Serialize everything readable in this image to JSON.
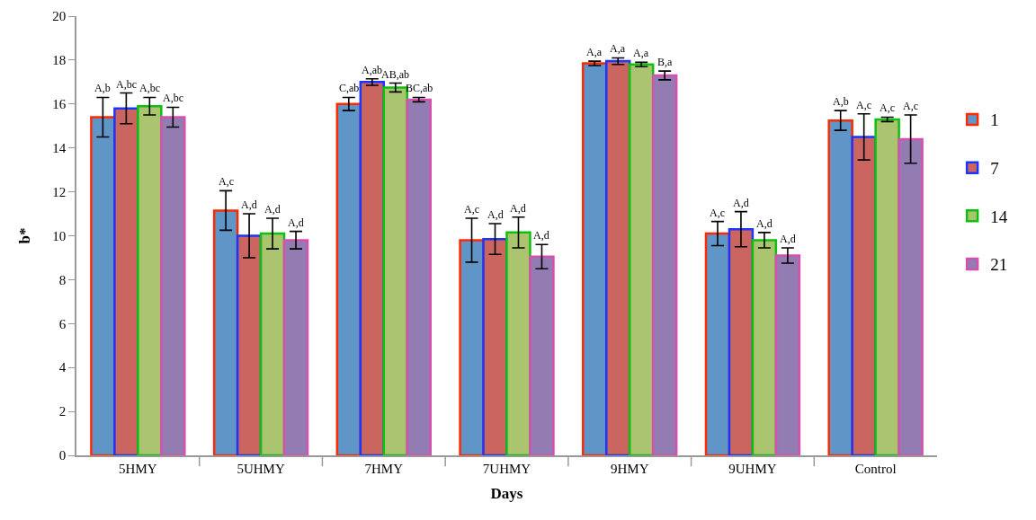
{
  "chart_data": {
    "type": "bar",
    "xlabel": "Days",
    "ylabel": "b*",
    "categories": [
      "5HMY",
      "5UHMY",
      "7HMY",
      "7UHMY",
      "9HMY",
      "9UHMY",
      "Control"
    ],
    "series": [
      {
        "name": "1",
        "color": "#6095c8",
        "values": [
          15.4,
          11.15,
          16.0,
          9.8,
          17.85,
          10.1,
          15.25
        ],
        "errors": [
          0.9,
          0.9,
          0.3,
          1.0,
          0.1,
          0.55,
          0.45
        ],
        "value_labels": [
          "A,b",
          "A,c",
          "C,ab",
          "A,c",
          "A,a",
          "A,c",
          "A,b"
        ]
      },
      {
        "name": "7",
        "color": "#cb655f",
        "values": [
          15.8,
          10.0,
          17.0,
          9.85,
          17.95,
          10.3,
          14.5
        ],
        "errors": [
          0.7,
          1.0,
          0.15,
          0.7,
          0.15,
          0.8,
          1.05
        ],
        "value_labels": [
          "A,bc",
          "A,d",
          "A,ab",
          "A,d",
          "A,a",
          "A,d",
          "A,c"
        ]
      },
      {
        "name": "14",
        "color": "#abc46f",
        "values": [
          15.9,
          10.1,
          16.75,
          10.15,
          17.8,
          9.8,
          15.3
        ],
        "errors": [
          0.4,
          0.7,
          0.2,
          0.7,
          0.1,
          0.35,
          0.1
        ],
        "value_labels": [
          "A,bc",
          "A,d",
          "AB,ab",
          "A,d",
          "A,a",
          "A,d",
          "A,c"
        ]
      },
      {
        "name": "21",
        "color": "#937cb2",
        "values": [
          15.4,
          9.8,
          16.2,
          9.05,
          17.3,
          9.1,
          14.4
        ],
        "errors": [
          0.45,
          0.4,
          0.1,
          0.55,
          0.2,
          0.35,
          1.1
        ],
        "value_labels": [
          "A,bc",
          "A,d",
          "BC,ab",
          "A,d",
          "B,a",
          "A,d",
          "A,c"
        ]
      }
    ],
    "ylim": [
      0,
      20
    ],
    "yticks": [
      0,
      2,
      4,
      6,
      8,
      10,
      12,
      14,
      16,
      18,
      20
    ],
    "grid": false,
    "legend": "right"
  }
}
